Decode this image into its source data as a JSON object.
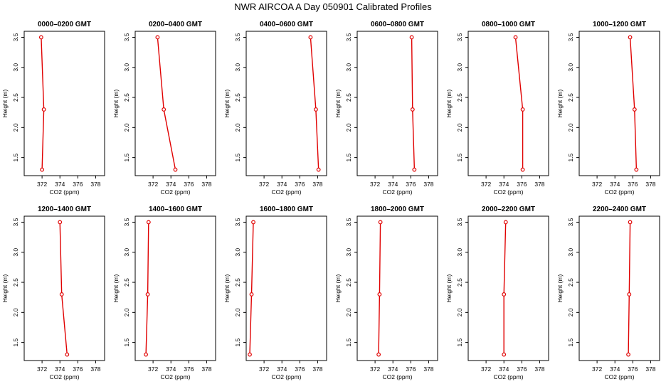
{
  "figure": {
    "title": "NWR AIRCOA A  Day 050901  Calibrated Profiles"
  },
  "colors": {
    "series": "#e00000",
    "axes": "#000000"
  },
  "chart_data": [
    {
      "type": "line",
      "title": "0000–0200 GMT",
      "xlabel": "CO2 (ppm)",
      "ylabel": "Height (m)",
      "xlim": [
        370,
        379
      ],
      "ylim": [
        1.2,
        3.6
      ],
      "xticks": [
        "372",
        "374",
        "376",
        "378"
      ],
      "yticks": [
        "1.5",
        "2.0",
        "2.5",
        "3.0",
        "3.5"
      ],
      "x": [
        371.9,
        372.2,
        372.0
      ],
      "y": [
        3.5,
        2.3,
        1.3
      ]
    },
    {
      "type": "line",
      "title": "0200–0400 GMT",
      "xlabel": "CO2 (ppm)",
      "ylabel": "Height (m)",
      "xlim": [
        370,
        379
      ],
      "ylim": [
        1.2,
        3.6
      ],
      "xticks": [
        "372",
        "374",
        "376",
        "378"
      ],
      "yticks": [
        "1.5",
        "2.0",
        "2.5",
        "3.0",
        "3.5"
      ],
      "x": [
        372.5,
        373.2,
        374.5
      ],
      "y": [
        3.5,
        2.3,
        1.3
      ]
    },
    {
      "type": "line",
      "title": "0400–0600 GMT",
      "xlabel": "CO2 (ppm)",
      "ylabel": "Height (m)",
      "xlim": [
        370,
        379
      ],
      "ylim": [
        1.2,
        3.6
      ],
      "xticks": [
        "372",
        "374",
        "376",
        "378"
      ],
      "yticks": [
        "1.5",
        "2.0",
        "2.5",
        "3.0",
        "3.5"
      ],
      "x": [
        377.2,
        377.8,
        378.1
      ],
      "y": [
        3.5,
        2.3,
        1.3
      ]
    },
    {
      "type": "line",
      "title": "0600–0800 GMT",
      "xlabel": "CO2 (ppm)",
      "ylabel": "Height (m)",
      "xlim": [
        370,
        379
      ],
      "ylim": [
        1.2,
        3.6
      ],
      "xticks": [
        "372",
        "374",
        "376",
        "378"
      ],
      "yticks": [
        "1.5",
        "2.0",
        "2.5",
        "3.0",
        "3.5"
      ],
      "x": [
        376.1,
        376.2,
        376.4
      ],
      "y": [
        3.5,
        2.3,
        1.3
      ]
    },
    {
      "type": "line",
      "title": "0800–1000 GMT",
      "xlabel": "CO2 (ppm)",
      "ylabel": "Height (m)",
      "xlim": [
        370,
        379
      ],
      "ylim": [
        1.2,
        3.6
      ],
      "xticks": [
        "372",
        "374",
        "376",
        "378"
      ],
      "yticks": [
        "1.5",
        "2.0",
        "2.5",
        "3.0",
        "3.5"
      ],
      "x": [
        375.3,
        376.1,
        376.1
      ],
      "y": [
        3.5,
        2.3,
        1.3
      ]
    },
    {
      "type": "line",
      "title": "1000–1200 GMT",
      "xlabel": "CO2 (ppm)",
      "ylabel": "Height (m)",
      "xlim": [
        370,
        379
      ],
      "ylim": [
        1.2,
        3.6
      ],
      "xticks": [
        "372",
        "374",
        "376",
        "378"
      ],
      "yticks": [
        "1.5",
        "2.0",
        "2.5",
        "3.0",
        "3.5"
      ],
      "x": [
        375.7,
        376.2,
        376.4
      ],
      "y": [
        3.5,
        2.3,
        1.3
      ]
    },
    {
      "type": "line",
      "title": "1200–1400 GMT",
      "xlabel": "CO2 (ppm)",
      "ylabel": "Height (m)",
      "xlim": [
        370,
        379
      ],
      "ylim": [
        1.2,
        3.6
      ],
      "xticks": [
        "372",
        "374",
        "376",
        "378"
      ],
      "yticks": [
        "1.5",
        "2.0",
        "2.5",
        "3.0",
        "3.5"
      ],
      "x": [
        374.0,
        374.2,
        374.8
      ],
      "y": [
        3.5,
        2.3,
        1.3
      ]
    },
    {
      "type": "line",
      "title": "1400–1600 GMT",
      "xlabel": "CO2 (ppm)",
      "ylabel": "Height (m)",
      "xlim": [
        370,
        379
      ],
      "ylim": [
        1.2,
        3.6
      ],
      "xticks": [
        "372",
        "374",
        "376",
        "378"
      ],
      "yticks": [
        "1.5",
        "2.0",
        "2.5",
        "3.0",
        "3.5"
      ],
      "x": [
        371.5,
        371.4,
        371.2
      ],
      "y": [
        3.5,
        2.3,
        1.3
      ]
    },
    {
      "type": "line",
      "title": "1600–1800 GMT",
      "xlabel": "CO2 (ppm)",
      "ylabel": "Height (m)",
      "xlim": [
        370,
        379
      ],
      "ylim": [
        1.2,
        3.6
      ],
      "xticks": [
        "372",
        "374",
        "376",
        "378"
      ],
      "yticks": [
        "1.5",
        "2.0",
        "2.5",
        "3.0",
        "3.5"
      ],
      "x": [
        370.8,
        370.6,
        370.4
      ],
      "y": [
        3.5,
        2.3,
        1.3
      ]
    },
    {
      "type": "line",
      "title": "1800–2000 GMT",
      "xlabel": "CO2 (ppm)",
      "ylabel": "Height (m)",
      "xlim": [
        370,
        379
      ],
      "ylim": [
        1.2,
        3.6
      ],
      "xticks": [
        "372",
        "374",
        "376",
        "378"
      ],
      "yticks": [
        "1.5",
        "2.0",
        "2.5",
        "3.0",
        "3.5"
      ],
      "x": [
        372.6,
        372.5,
        372.4
      ],
      "y": [
        3.5,
        2.3,
        1.3
      ]
    },
    {
      "type": "line",
      "title": "2000–2200 GMT",
      "xlabel": "CO2 (ppm)",
      "ylabel": "Height (m)",
      "xlim": [
        370,
        379
      ],
      "ylim": [
        1.2,
        3.6
      ],
      "xticks": [
        "372",
        "374",
        "376",
        "378"
      ],
      "yticks": [
        "1.5",
        "2.0",
        "2.5",
        "3.0",
        "3.5"
      ],
      "x": [
        374.2,
        374.0,
        374.0
      ],
      "y": [
        3.5,
        2.3,
        1.3
      ]
    },
    {
      "type": "line",
      "title": "2200–2400 GMT",
      "xlabel": "CO2 (ppm)",
      "ylabel": "Height (m)",
      "xlim": [
        370,
        379
      ],
      "ylim": [
        1.2,
        3.6
      ],
      "xticks": [
        "372",
        "374",
        "376",
        "378"
      ],
      "yticks": [
        "1.5",
        "2.0",
        "2.5",
        "3.0",
        "3.5"
      ],
      "x": [
        375.7,
        375.6,
        375.5
      ],
      "y": [
        3.5,
        2.3,
        1.3
      ]
    }
  ]
}
